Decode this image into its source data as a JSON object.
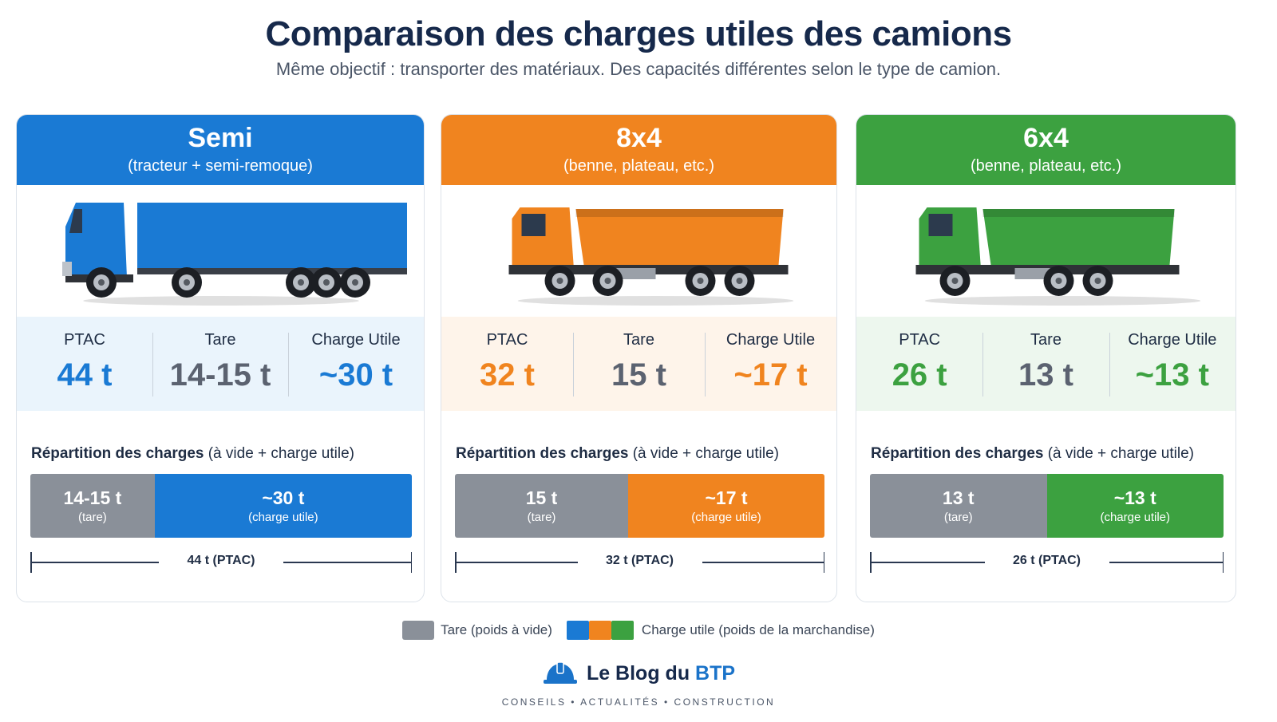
{
  "title": "Comparaison des charges utiles des camions",
  "subtitle": "Même objectif : transporter des matériaux. Des capacités différentes selon le type de camion.",
  "labels": {
    "ptac": "PTAC",
    "tare": "Tare",
    "charge_utile": "Charge Utile",
    "repartition_bold": "Répartition des charges",
    "repartition_rest": " (à vide + charge utile)",
    "tare_sub": "(tare)",
    "charge_sub": "(charge utile)"
  },
  "legend": {
    "tare": "Tare (poids à vide)",
    "charge": "Charge utile (poids de la marchandise)"
  },
  "logo": {
    "name_main": "Le Blog du ",
    "name_accent": "BTP",
    "tagline": "CONSEILS • ACTUALITÉS • CONSTRUCTION",
    "icon": "hard-hat-icon"
  },
  "colors": {
    "tare": "#8a9099",
    "semi": "#1a7ad4",
    "8x4": "#f0841f",
    "6x4": "#3ca140"
  },
  "chart_data": {
    "type": "bar",
    "orientation": "horizontal-stacked",
    "categories": [
      "Semi",
      "8x4",
      "6x4"
    ],
    "series": [
      {
        "name": "Tare",
        "values": [
          14.5,
          15,
          13
        ]
      },
      {
        "name": "Charge utile",
        "values": [
          30,
          17,
          13
        ]
      }
    ],
    "trucks": [
      {
        "key": "semi",
        "name": "Semi",
        "desc": "(tracteur + semi-remoque)",
        "color": "#1a7ad4",
        "bg": "#eaf4fc",
        "kind": "semi",
        "ptac": "44 t",
        "tare": "14-15 t",
        "charge": "~30 t",
        "tare_value": 14.5,
        "charge_value": 30,
        "ptac_value": 44,
        "bar_tare": "14-15 t",
        "bar_charge": "~30 t",
        "scale_label": "44 t (PTAC)"
      },
      {
        "key": "8x4",
        "name": "8x4",
        "desc": "(benne, plateau, etc.)",
        "color": "#f0841f",
        "bg": "#fef4ea",
        "kind": "dump4",
        "ptac": "32 t",
        "tare": "15 t",
        "charge": "~17 t",
        "tare_value": 15,
        "charge_value": 17,
        "ptac_value": 32,
        "bar_tare": "15 t",
        "bar_charge": "~17 t",
        "scale_label": "32 t (PTAC)"
      },
      {
        "key": "6x4",
        "name": "6x4",
        "desc": "(benne, plateau, etc.)",
        "color": "#3ca140",
        "bg": "#edf7ee",
        "kind": "dump3",
        "ptac": "26 t",
        "tare": "13 t",
        "charge": "~13 t",
        "tare_value": 13,
        "charge_value": 13,
        "ptac_value": 26,
        "bar_tare": "13 t",
        "bar_charge": "~13 t",
        "scale_label": "26 t (PTAC)"
      }
    ]
  }
}
